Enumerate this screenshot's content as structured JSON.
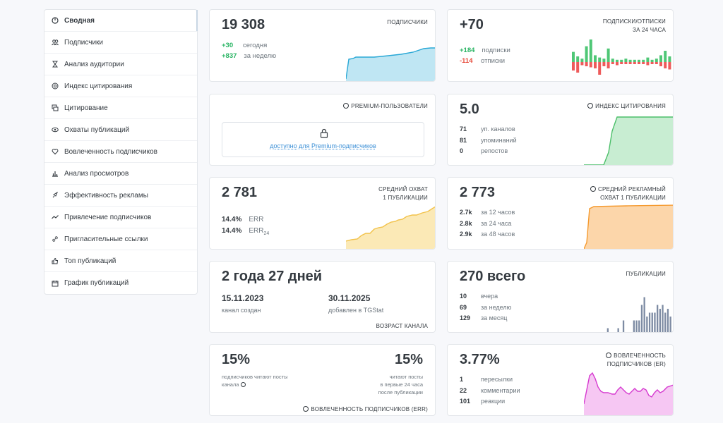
{
  "sidebar": {
    "items": [
      {
        "label": "Сводная",
        "icon": "dashboard-icon",
        "active": true
      },
      {
        "label": "Подписчики",
        "icon": "users-icon"
      },
      {
        "label": "Анализ аудитории",
        "icon": "hourglass-icon"
      },
      {
        "label": "Индекс цитирования",
        "icon": "at-icon"
      },
      {
        "label": "Цитирование",
        "icon": "quote-icon"
      },
      {
        "label": "Охваты публикаций",
        "icon": "eye-icon"
      },
      {
        "label": "Вовлеченность подписчиков",
        "icon": "heart-icon"
      },
      {
        "label": "Анализ просмотров",
        "icon": "bar-chart-icon"
      },
      {
        "label": "Эффективность рекламы",
        "icon": "rocket-icon"
      },
      {
        "label": "Привлечение подписчиков",
        "icon": "trend-icon"
      },
      {
        "label": "Пригласительные ссылки",
        "icon": "link-icon"
      },
      {
        "label": "Топ публикаций",
        "icon": "thumbs-up-icon"
      },
      {
        "label": "График публикаций",
        "icon": "calendar-icon"
      }
    ]
  },
  "subscribers": {
    "value": "19 308",
    "label": "ПОДПИСЧИКИ",
    "today_value": "+30",
    "today_label": "сегодня",
    "week_value": "+837",
    "week_label": "за неделю",
    "color": "#29a8d6"
  },
  "subs_change": {
    "value": "+70",
    "label_line1": "ПОДПИСКИ/ОТПИСКИ",
    "label_line2": "ЗА 24 ЧАСА",
    "subs_value": "+184",
    "subs_label": "подписки",
    "unsubs_value": "-114",
    "unsubs_label": "отписки",
    "pos_color": "#4fc776",
    "neg_color": "#ee5a5a",
    "pos": [
      9,
      5,
      3,
      14,
      20,
      6,
      4,
      3,
      12,
      3,
      2,
      2,
      3,
      2,
      2,
      2,
      2,
      4,
      2,
      3,
      6,
      10,
      5
    ],
    "neg": [
      8,
      10,
      3,
      4,
      5,
      6,
      12,
      4,
      6,
      2,
      3,
      2,
      2,
      2,
      2,
      2,
      2,
      3,
      2,
      2,
      4,
      6,
      7
    ]
  },
  "premium": {
    "label": "PREMIUM-ПОЛЬЗОВАТЕЛИ",
    "link_text": "доступно для Premium-подписчиков"
  },
  "citation": {
    "value": "5.0",
    "label": "ИНДЕКС ЦИТИРОВАНИЯ",
    "rows": [
      {
        "v": "71",
        "l": "уп. каналов"
      },
      {
        "v": "81",
        "l": "упоминаний"
      },
      {
        "v": "0",
        "l": "репостов"
      }
    ],
    "color": "#4cbf6a"
  },
  "reach": {
    "value": "2 781",
    "label_line1": "СРЕДНИЙ ОХВАТ",
    "label_line2": "1 ПУБЛИКАЦИИ",
    "err_value": "14.4%",
    "err_label": "ERR",
    "err24_value": "14.4%",
    "err24_label": "ERR",
    "err24_sub": "24",
    "color": "#f2c24a"
  },
  "ad_reach": {
    "value": "2 773",
    "label_line1": "СРЕДНИЙ РЕКЛАМНЫЙ",
    "label_line2": "ОХВАТ 1 ПУБЛИКАЦИИ",
    "rows": [
      {
        "v": "2.7k",
        "l": "за 12 часов"
      },
      {
        "v": "2.8k",
        "l": "за 24 часа"
      },
      {
        "v": "2.9k",
        "l": "за 48 часов"
      }
    ],
    "color": "#f59a2f"
  },
  "age": {
    "value": "2 года 27 дней",
    "created_date": "15.11.2023",
    "created_label": "канал создан",
    "added_date": "30.11.2025",
    "added_label": "добавлен в TGStat",
    "label": "ВОЗРАСТ КАНАЛА"
  },
  "publications": {
    "value": "270 всего",
    "label": "ПУБЛИКАЦИИ",
    "rows": [
      {
        "v": "10",
        "l": "вчера"
      },
      {
        "v": "69",
        "l": "за неделю"
      },
      {
        "v": "129",
        "l": "за месяц"
      }
    ],
    "color": "#7d8ba3",
    "bars": [
      0,
      0,
      0,
      0,
      0,
      0,
      0,
      0,
      0,
      0,
      0,
      1,
      0,
      0,
      0,
      1,
      0,
      3,
      0,
      0,
      0,
      3,
      3,
      3,
      7,
      9,
      4,
      5,
      5,
      5,
      7,
      6,
      7,
      5,
      6,
      4
    ]
  },
  "err_engagement": {
    "left_value": "15%",
    "left_label": "подписчиков читают посты канала",
    "right_value": "15%",
    "right_label_1": "читают посты",
    "right_label_2": "в первые 24 часа",
    "right_label_3": "после публикации",
    "label": "ВОВЛЕЧЕННОСТЬ ПОДПИСЧИКОВ (ERR)"
  },
  "er_engagement": {
    "value": "3.77%",
    "label_line1": "ВОВЛЕЧЕННОСТЬ",
    "label_line2": "ПОДПИСЧИКОВ (ER)",
    "rows": [
      {
        "v": "1",
        "l": "пересылки"
      },
      {
        "v": "22",
        "l": "комментарии"
      },
      {
        "v": "101",
        "l": "реакции"
      }
    ],
    "color": "#e44ce0"
  }
}
